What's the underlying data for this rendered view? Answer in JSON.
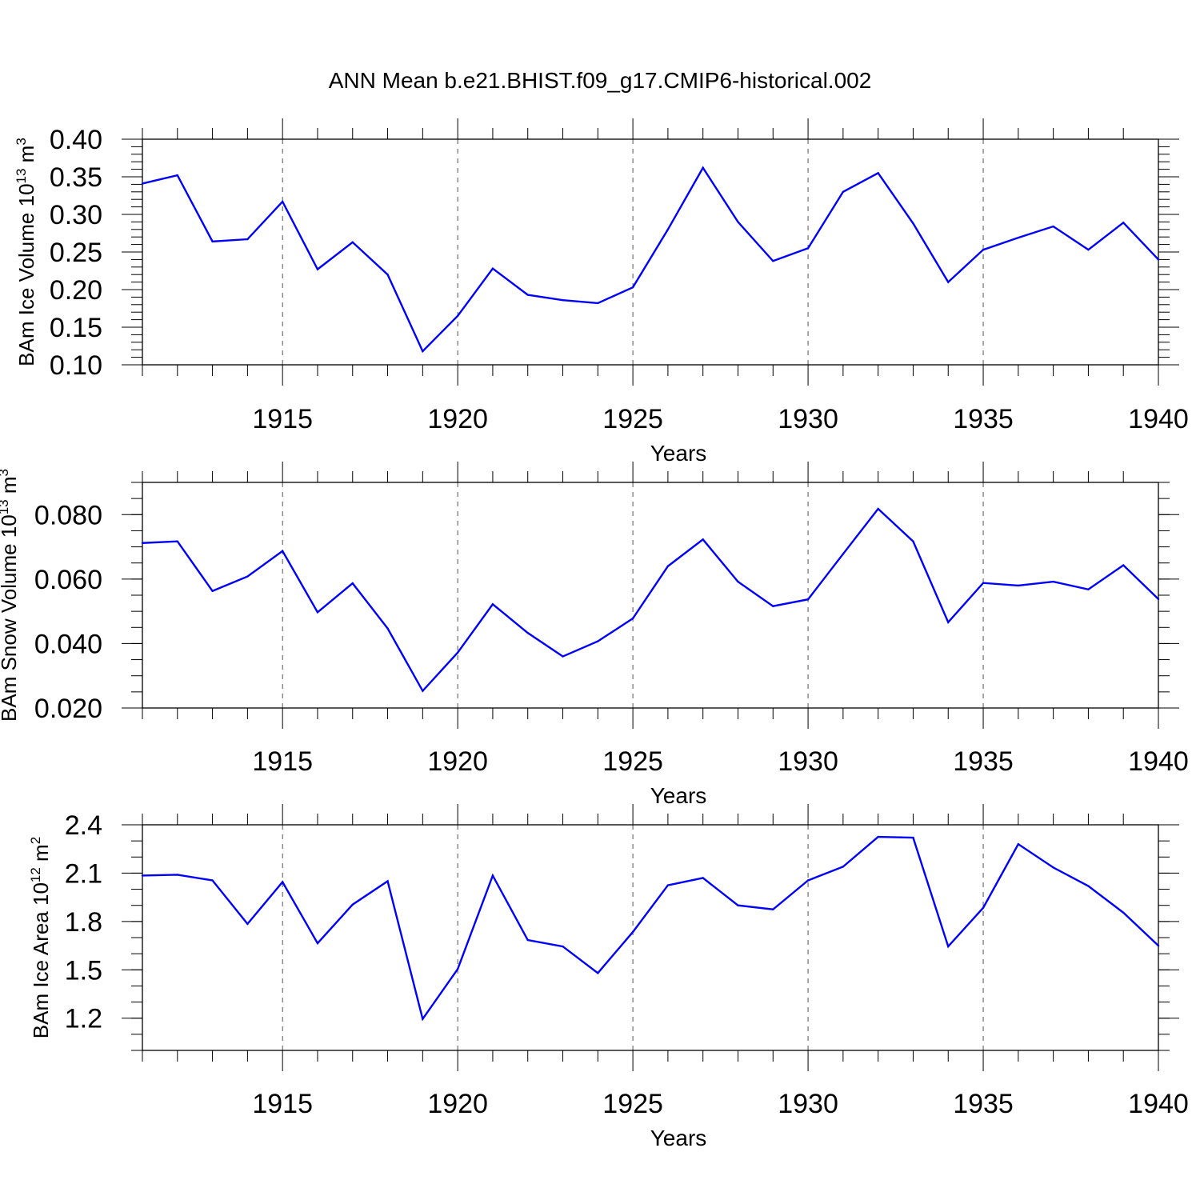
{
  "title": "ANN Mean b.e21.BHIST.f09_g17.CMIP6-historical.002",
  "colors": {
    "line": "#0000ff",
    "axis": "#000000",
    "grid": "#555555"
  },
  "chart_data": [
    {
      "type": "line",
      "series": [
        {
          "name": "BAm Ice Volume",
          "x": [
            1911,
            1912,
            1913,
            1914,
            1915,
            1916,
            1917,
            1918,
            1919,
            1920,
            1921,
            1922,
            1923,
            1924,
            1925,
            1926,
            1927,
            1928,
            1929,
            1930,
            1931,
            1932,
            1933,
            1934,
            1935,
            1936,
            1937,
            1938,
            1939,
            1940
          ],
          "values": [
            0.341,
            0.352,
            0.264,
            0.267,
            0.317,
            0.227,
            0.263,
            0.22,
            0.118,
            0.165,
            0.228,
            0.193,
            0.186,
            0.182,
            0.203,
            0.28,
            0.362,
            0.29,
            0.238,
            0.255,
            0.33,
            0.355,
            0.288,
            0.21,
            0.253,
            0.269,
            0.284,
            0.253,
            0.289,
            0.24
          ]
        }
      ],
      "ylabel_main": "BAm Ice Volume 10",
      "ylabel_exp": "13",
      "ylabel_unit": " m",
      "ylabel_unit_exp": "3",
      "xlabel": "Years",
      "xlim": [
        1911,
        1940
      ],
      "ylim": [
        0.1,
        0.4
      ],
      "yticks": [
        0.1,
        0.15,
        0.2,
        0.25,
        0.3,
        0.35,
        0.4
      ],
      "ytick_labels": [
        "0.10",
        "0.15",
        "0.20",
        "0.25",
        "0.30",
        "0.35",
        "0.40"
      ],
      "yminor_step": 0.01,
      "xticks": [
        1915,
        1920,
        1925,
        1930,
        1935,
        1940
      ],
      "xtick_labels": [
        "1915",
        "1920",
        "1925",
        "1930",
        "1935",
        "1940"
      ],
      "xgrid": [
        1915,
        1920,
        1925,
        1930,
        1935
      ]
    },
    {
      "type": "line",
      "series": [
        {
          "name": "BAm Snow Volume",
          "x": [
            1911,
            1912,
            1913,
            1914,
            1915,
            1916,
            1917,
            1918,
            1919,
            1920,
            1921,
            1922,
            1923,
            1924,
            1925,
            1926,
            1927,
            1928,
            1929,
            1930,
            1931,
            1932,
            1933,
            1934,
            1935,
            1936,
            1937,
            1938,
            1939,
            1940
          ],
          "values": [
            0.0712,
            0.0717,
            0.0563,
            0.0608,
            0.0687,
            0.0497,
            0.0587,
            0.0447,
            0.0253,
            0.0372,
            0.0522,
            0.0433,
            0.036,
            0.0407,
            0.0478,
            0.064,
            0.0723,
            0.0592,
            0.0516,
            0.0537,
            0.0678,
            0.0818,
            0.0717,
            0.0466,
            0.0588,
            0.058,
            0.0592,
            0.0568,
            0.0643,
            0.0538
          ]
        }
      ],
      "ylabel_main": "BAm Snow Volume 10",
      "ylabel_exp": "13",
      "ylabel_unit": " m",
      "ylabel_unit_exp": "3",
      "xlabel": "Years",
      "xlim": [
        1911,
        1940
      ],
      "ylim": [
        0.02,
        0.09
      ],
      "yticks": [
        0.02,
        0.04,
        0.06,
        0.08
      ],
      "ytick_labels": [
        "0.020",
        "0.040",
        "0.060",
        "0.080"
      ],
      "yminor_step": 0.005,
      "xticks": [
        1915,
        1920,
        1925,
        1930,
        1935,
        1940
      ],
      "xtick_labels": [
        "1915",
        "1920",
        "1925",
        "1930",
        "1935",
        "1940"
      ],
      "xgrid": [
        1915,
        1920,
        1925,
        1930,
        1935
      ]
    },
    {
      "type": "line",
      "series": [
        {
          "name": "BAm Ice Area",
          "x": [
            1911,
            1912,
            1913,
            1914,
            1915,
            1916,
            1917,
            1918,
            1919,
            1920,
            1921,
            1922,
            1923,
            1924,
            1925,
            1926,
            1927,
            1928,
            1929,
            1930,
            1931,
            1932,
            1933,
            1934,
            1935,
            1936,
            1937,
            1938,
            1939,
            1940
          ],
          "values": [
            2.085,
            2.09,
            2.055,
            1.785,
            2.045,
            1.665,
            1.905,
            2.05,
            1.195,
            1.505,
            2.085,
            1.685,
            1.645,
            1.48,
            1.735,
            2.025,
            2.07,
            1.9,
            1.875,
            2.055,
            2.14,
            2.325,
            2.32,
            1.645,
            1.885,
            2.28,
            2.135,
            2.02,
            1.855,
            1.65
          ]
        }
      ],
      "ylabel_main": "BAm Ice Area 10",
      "ylabel_exp": "12",
      "ylabel_unit": " m",
      "ylabel_unit_exp": "2",
      "xlabel": "Years",
      "xlim": [
        1911,
        1940
      ],
      "ylim": [
        1.0,
        2.4
      ],
      "yticks": [
        1.2,
        1.5,
        1.8,
        2.1,
        2.4
      ],
      "ytick_labels": [
        "1.2",
        "1.5",
        "1.8",
        "2.1",
        "2.4"
      ],
      "yminor_step": 0.1,
      "xticks": [
        1915,
        1920,
        1925,
        1930,
        1935,
        1940
      ],
      "xtick_labels": [
        "1915",
        "1920",
        "1925",
        "1930",
        "1935",
        "1940"
      ],
      "xgrid": [
        1915,
        1920,
        1925,
        1930,
        1935
      ]
    }
  ]
}
